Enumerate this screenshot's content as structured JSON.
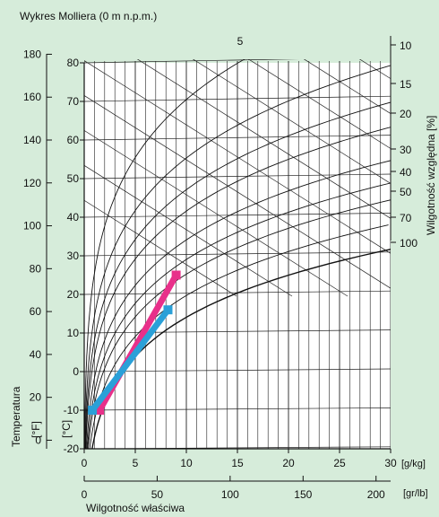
{
  "chart_data": {
    "type": "line",
    "title": "Wykres Molliera (0 m n.p.m.)",
    "x_axis_gkg": {
      "label": "[g/kg]",
      "range": [
        0,
        30
      ],
      "ticks": [
        "0",
        "5",
        "10",
        "15",
        "20",
        "25",
        "30"
      ]
    },
    "x_axis_grlb": {
      "label": "[gr/lb]",
      "ticks": [
        "0",
        "50",
        "100",
        "150",
        "200"
      ]
    },
    "x_title": "Wilgotność właściwa",
    "y_title": "Temperatura",
    "y_axis_c": {
      "unit": "[°C]",
      "range": [
        -20,
        80
      ],
      "ticks": [
        "-20",
        "-10",
        "0",
        "10",
        "20",
        "30",
        "40",
        "50",
        "60",
        "70",
        "80"
      ]
    },
    "y_axis_f": {
      "unit": "[°F]",
      "ticks": [
        "0",
        "20",
        "40",
        "60",
        "80",
        "100",
        "120",
        "140",
        "160",
        "180"
      ]
    },
    "rh_axis": {
      "label": "Wilgotność względna [%]",
      "ticks": [
        "5",
        "10",
        "15",
        "20",
        "30",
        "40",
        "50",
        "70",
        "100"
      ]
    },
    "rh_curves_percent": [
      5,
      10,
      15,
      20,
      30,
      40,
      50,
      70,
      100
    ],
    "grid": true,
    "series": [
      {
        "color": "#e8308a",
        "x": [
          1.5,
          9
        ],
        "y": [
          -10,
          25
        ]
      },
      {
        "color": "#2aa0d8",
        "x": [
          0.8,
          8.2
        ],
        "y": [
          -10,
          16
        ]
      }
    ]
  }
}
